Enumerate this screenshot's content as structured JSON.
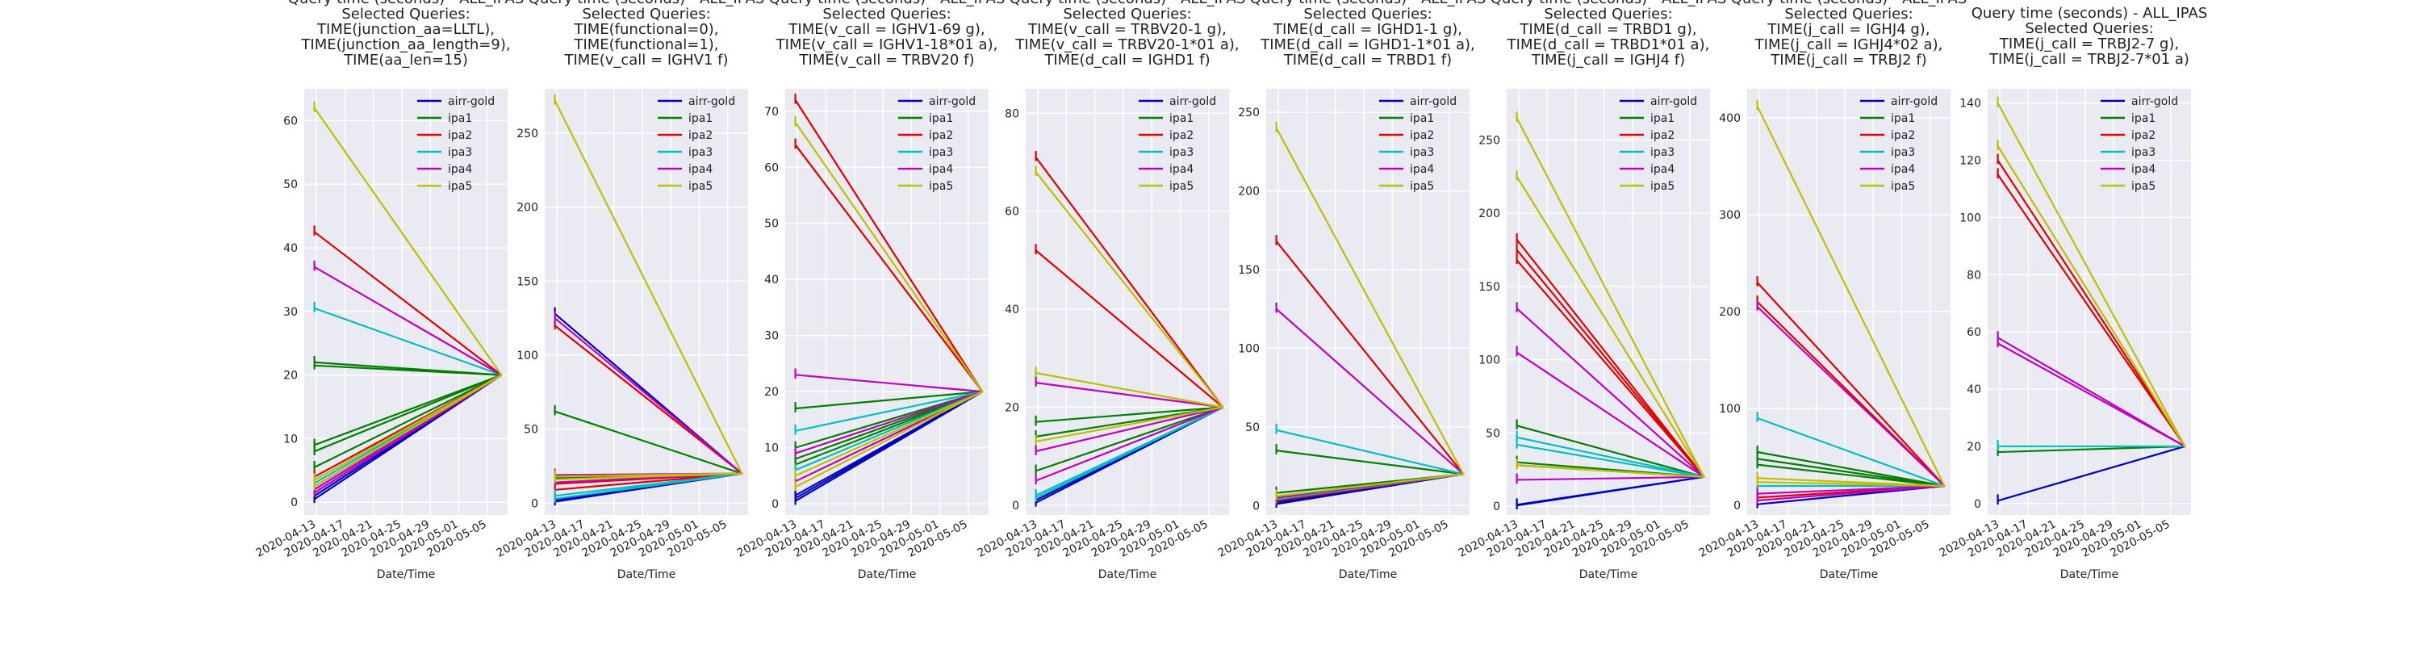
{
  "chart_data": [
    {
      "type": "line",
      "title_lines": [
        "Query time (seconds) - ALL_IPAS",
        "Selected Queries:",
        "TIME(junction_aa=LLTL),",
        "TIME(junction_aa_length=9),",
        "TIME(aa_len=15)"
      ],
      "xlabel": "Date/Time",
      "x_ticks": [
        "2020-04-13",
        "2020-04-17",
        "2020-04-21",
        "2020-04-25",
        "2020-04-29",
        "2020-05-01",
        "2020-05-05"
      ],
      "ylim": [
        -2,
        65
      ],
      "y_ticks": [
        0,
        10,
        20,
        30,
        40,
        50,
        60
      ],
      "grid": true,
      "legend_position": "top-right",
      "series": [
        {
          "name": "airr-gold",
          "color": "#0000bf",
          "segments": [
            [
              0.5,
              20
            ],
            [
              1,
              20
            ],
            [
              1.5,
              20
            ],
            [
              2,
              20
            ]
          ]
        },
        {
          "name": "ipa1",
          "color": "#007f00",
          "segments": [
            [
              21.5,
              20
            ],
            [
              8,
              20
            ],
            [
              5.5,
              20
            ],
            [
              22,
              20
            ],
            [
              9,
              20
            ]
          ]
        },
        {
          "name": "ipa2",
          "color": "#e00000",
          "segments": [
            [
              42.5,
              20
            ],
            [
              2.5,
              20
            ],
            [
              4,
              20
            ]
          ]
        },
        {
          "name": "ipa3",
          "color": "#00bfbf",
          "segments": [
            [
              30.5,
              20
            ],
            [
              3,
              20
            ],
            [
              3.5,
              20
            ]
          ]
        },
        {
          "name": "ipa4",
          "color": "#bf00bf",
          "segments": [
            [
              37,
              20
            ],
            [
              2,
              20
            ],
            [
              1.5,
              20
            ]
          ]
        },
        {
          "name": "ipa5",
          "color": "#bfbf00",
          "segments": [
            [
              62,
              20
            ],
            [
              3.5,
              20
            ],
            [
              2.5,
              20
            ]
          ]
        }
      ]
    },
    {
      "type": "line",
      "title_lines": [
        "Query time (seconds) - ALL_IPAS",
        "Selected Queries:",
        "TIME(functional=0),",
        "TIME(functional=1),",
        "TIME(v_call = IGHV1 f)"
      ],
      "xlabel": "Date/Time",
      "x_ticks": [
        "2020-04-13",
        "2020-04-17",
        "2020-04-21",
        "2020-04-25",
        "2020-04-29",
        "2020-05-01",
        "2020-05-05"
      ],
      "ylim": [
        -8,
        280
      ],
      "y_ticks": [
        0,
        50,
        100,
        150,
        200,
        250
      ],
      "grid": true,
      "legend_position": "top-right",
      "series": [
        {
          "name": "airr-gold",
          "color": "#0000bf",
          "segments": [
            [
              128,
              20
            ],
            [
              1,
              20
            ],
            [
              2,
              20
            ]
          ]
        },
        {
          "name": "ipa1",
          "color": "#007f00",
          "segments": [
            [
              62,
              20
            ],
            [
              17,
              20
            ],
            [
              14,
              20
            ]
          ]
        },
        {
          "name": "ipa2",
          "color": "#e00000",
          "segments": [
            [
              120,
              20
            ],
            [
              9,
              20
            ],
            [
              13,
              20
            ]
          ]
        },
        {
          "name": "ipa3",
          "color": "#00bfbf",
          "segments": [
            [
              3,
              20
            ],
            [
              5,
              20
            ]
          ]
        },
        {
          "name": "ipa4",
          "color": "#bf00bf",
          "segments": [
            [
              125,
              20
            ],
            [
              14,
              20
            ],
            [
              19,
              20
            ]
          ]
        },
        {
          "name": "ipa5",
          "color": "#bfbf00",
          "segments": [
            [
              272,
              20
            ],
            [
              18,
              20
            ],
            [
              16,
              20
            ]
          ]
        }
      ]
    },
    {
      "type": "line",
      "title_lines": [
        "Query time (seconds) - ALL_IPAS",
        "Selected Queries:",
        "TIME(v_call = IGHV1-69 g),",
        "TIME(v_call = IGHV1-18*01 a),",
        "TIME(v_call = TRBV20 f)"
      ],
      "xlabel": "Date/Time",
      "x_ticks": [
        "2020-04-13",
        "2020-04-17",
        "2020-04-21",
        "2020-04-25",
        "2020-04-29",
        "2020-05-01",
        "2020-05-05"
      ],
      "ylim": [
        -2,
        74
      ],
      "y_ticks": [
        0,
        10,
        20,
        30,
        40,
        50,
        60,
        70
      ],
      "grid": true,
      "legend_position": "top-right",
      "series": [
        {
          "name": "airr-gold",
          "color": "#0000bf",
          "segments": [
            [
              0.5,
              20
            ],
            [
              1,
              20
            ],
            [
              1.5,
              20
            ]
          ]
        },
        {
          "name": "ipa1",
          "color": "#007f00",
          "segments": [
            [
              17,
              20
            ],
            [
              8,
              20
            ],
            [
              7,
              20
            ],
            [
              10,
              20
            ]
          ]
        },
        {
          "name": "ipa2",
          "color": "#e00000",
          "segments": [
            [
              72,
              20
            ],
            [
              64,
              20
            ]
          ]
        },
        {
          "name": "ipa3",
          "color": "#00bfbf",
          "segments": [
            [
              13,
              20
            ],
            [
              6,
              20
            ]
          ]
        },
        {
          "name": "ipa4",
          "color": "#bf00bf",
          "segments": [
            [
              23,
              20
            ],
            [
              9,
              20
            ],
            [
              4,
              20
            ]
          ]
        },
        {
          "name": "ipa5",
          "color": "#bfbf00",
          "segments": [
            [
              68,
              20
            ],
            [
              5,
              20
            ],
            [
              3,
              20
            ]
          ]
        }
      ]
    },
    {
      "type": "line",
      "title_lines": [
        "Query time (seconds) - ALL_IPAS",
        "Selected Queries:",
        "TIME(v_call = TRBV20-1 g),",
        "TIME(v_call = TRBV20-1*01  a),",
        "TIME(d_call = IGHD1 f)"
      ],
      "xlabel": "Date/Time",
      "x_ticks": [
        "2020-04-13",
        "2020-04-17",
        "2020-04-21",
        "2020-04-25",
        "2020-04-29",
        "2020-05-01",
        "2020-05-05"
      ],
      "ylim": [
        -2,
        85
      ],
      "y_ticks": [
        0,
        20,
        40,
        60,
        80
      ],
      "grid": true,
      "legend_position": "top-right",
      "series": [
        {
          "name": "airr-gold",
          "color": "#0000bf",
          "segments": [
            [
              0.5,
              20
            ],
            [
              1,
              20
            ]
          ]
        },
        {
          "name": "ipa1",
          "color": "#007f00",
          "segments": [
            [
              17,
              20
            ],
            [
              14,
              20
            ],
            [
              7,
              20
            ]
          ]
        },
        {
          "name": "ipa2",
          "color": "#e00000",
          "segments": [
            [
              71,
              20
            ],
            [
              52,
              20
            ]
          ]
        },
        {
          "name": "ipa3",
          "color": "#00bfbf",
          "segments": [
            [
              1.5,
              20
            ],
            [
              2,
              20
            ]
          ]
        },
        {
          "name": "ipa4",
          "color": "#bf00bf",
          "segments": [
            [
              25,
              20
            ],
            [
              11,
              20
            ],
            [
              5,
              20
            ]
          ]
        },
        {
          "name": "ipa5",
          "color": "#bfbf00",
          "segments": [
            [
              27,
              20
            ],
            [
              13,
              20
            ],
            [
              68,
              20
            ]
          ]
        }
      ]
    },
    {
      "type": "line",
      "title_lines": [
        "Query time (seconds) - ALL_IPAS",
        "Selected Queries:",
        "TIME(d_call = IGHD1-1 g),",
        "TIME(d_call = IGHD1-1*01 a),",
        "TIME(d_call = TRBD1 f)"
      ],
      "xlabel": "Date/Time",
      "x_ticks": [
        "2020-04-13",
        "2020-04-17",
        "2020-04-21",
        "2020-04-25",
        "2020-04-29",
        "2020-05-01",
        "2020-05-05"
      ],
      "ylim": [
        -6,
        265
      ],
      "y_ticks": [
        0,
        50,
        100,
        150,
        200,
        250
      ],
      "grid": true,
      "legend_position": "top-right",
      "series": [
        {
          "name": "airr-gold",
          "color": "#0000bf",
          "segments": [
            [
              1,
              20
            ],
            [
              2,
              20
            ]
          ]
        },
        {
          "name": "ipa1",
          "color": "#007f00",
          "segments": [
            [
              35,
              20
            ],
            [
              8,
              20
            ]
          ]
        },
        {
          "name": "ipa2",
          "color": "#e00000",
          "segments": [
            [
              168,
              20
            ],
            [
              3,
              20
            ]
          ]
        },
        {
          "name": "ipa3",
          "color": "#00bfbf",
          "segments": [
            [
              48,
              20
            ],
            [
              4,
              20
            ]
          ]
        },
        {
          "name": "ipa4",
          "color": "#bf00bf",
          "segments": [
            [
              125,
              20
            ],
            [
              5,
              20
            ]
          ]
        },
        {
          "name": "ipa5",
          "color": "#bfbf00",
          "segments": [
            [
              240,
              20
            ],
            [
              6,
              20
            ]
          ]
        }
      ]
    },
    {
      "type": "line",
      "title_lines": [
        "Query time (seconds) - ALL_IPAS",
        "Selected Queries:",
        "TIME(d_call = TRBD1 g),",
        "TIME(d_call = TRBD1*01 a),",
        "TIME(j_call = IGHJ4 f)"
      ],
      "xlabel": "Date/Time",
      "x_ticks": [
        "2020-04-13",
        "2020-04-17",
        "2020-04-21",
        "2020-04-25",
        "2020-04-29",
        "2020-05-01",
        "2020-05-05"
      ],
      "ylim": [
        -6,
        285
      ],
      "y_ticks": [
        0,
        50,
        100,
        150,
        200,
        250
      ],
      "grid": true,
      "legend_position": "top-right",
      "series": [
        {
          "name": "airr-gold",
          "color": "#0000bf",
          "segments": [
            [
              0.5,
              20
            ],
            [
              1,
              20
            ]
          ]
        },
        {
          "name": "ipa1",
          "color": "#007f00",
          "segments": [
            [
              55,
              20
            ],
            [
              30,
              20
            ],
            [
              28,
              20
            ]
          ]
        },
        {
          "name": "ipa2",
          "color": "#e00000",
          "segments": [
            [
              182,
              20
            ],
            [
              175,
              20
            ],
            [
              168,
              20
            ]
          ]
        },
        {
          "name": "ipa3",
          "color": "#00bfbf",
          "segments": [
            [
              47,
              20
            ],
            [
              42,
              20
            ]
          ]
        },
        {
          "name": "ipa4",
          "color": "#bf00bf",
          "segments": [
            [
              135,
              20
            ],
            [
              105,
              20
            ],
            [
              18,
              20
            ]
          ]
        },
        {
          "name": "ipa5",
          "color": "#bfbf00",
          "segments": [
            [
              265,
              20
            ],
            [
              225,
              20
            ],
            [
              28,
              20
            ]
          ]
        }
      ]
    },
    {
      "type": "line",
      "title_lines": [
        "Query time (seconds) - ALL_IPAS",
        "Selected Queries:",
        "TIME(j_call = IGHJ4 g),",
        "TIME(j_call = IGHJ4*02 a),",
        "TIME(j_call = TRBJ2 f)"
      ],
      "xlabel": "Date/Time",
      "x_ticks": [
        "2020-04-13",
        "2020-04-17",
        "2020-04-21",
        "2020-04-25",
        "2020-04-29",
        "2020-05-01",
        "2020-05-05"
      ],
      "ylim": [
        -10,
        430
      ],
      "y_ticks": [
        0,
        100,
        200,
        300,
        400
      ],
      "grid": true,
      "legend_position": "top-right",
      "series": [
        {
          "name": "airr-gold",
          "color": "#0000bf",
          "segments": [
            [
              1,
              20
            ]
          ]
        },
        {
          "name": "ipa1",
          "color": "#007f00",
          "segments": [
            [
              55,
              20
            ],
            [
              48,
              20
            ],
            [
              42,
              20
            ]
          ]
        },
        {
          "name": "ipa2",
          "color": "#e00000",
          "segments": [
            [
              230,
              20
            ],
            [
              210,
              20
            ],
            [
              8,
              20
            ]
          ]
        },
        {
          "name": "ipa3",
          "color": "#00bfbf",
          "segments": [
            [
              90,
              20
            ],
            [
              20,
              20
            ]
          ]
        },
        {
          "name": "ipa4",
          "color": "#bf00bf",
          "segments": [
            [
              205,
              20
            ],
            [
              12,
              20
            ],
            [
              5,
              20
            ]
          ]
        },
        {
          "name": "ipa5",
          "color": "#bfbf00",
          "segments": [
            [
              412,
              20
            ],
            [
              28,
              20
            ],
            [
              24,
              20
            ]
          ]
        }
      ]
    },
    {
      "type": "line",
      "title_lines": [
        "Query time (seconds) - ALL_IPAS",
        "Selected Queries:",
        "TIME(j_call = TRBJ2-7 g),",
        "TIME(j_call = TRBJ2-7*01 a)"
      ],
      "xlabel": "Date/Time",
      "x_ticks": [
        "2020-04-13",
        "2020-04-17",
        "2020-04-21",
        "2020-04-25",
        "2020-04-29",
        "2020-05-01",
        "2020-05-05"
      ],
      "ylim": [
        -4,
        145
      ],
      "y_ticks": [
        0,
        20,
        40,
        60,
        80,
        100,
        120,
        140
      ],
      "grid": true,
      "legend_position": "top-right",
      "series": [
        {
          "name": "airr-gold",
          "color": "#0000bf",
          "segments": [
            [
              1,
              20
            ]
          ]
        },
        {
          "name": "ipa1",
          "color": "#007f00",
          "segments": [
            [
              18,
              20
            ]
          ]
        },
        {
          "name": "ipa2",
          "color": "#e00000",
          "segments": [
            [
              120,
              20
            ],
            [
              115,
              20
            ]
          ]
        },
        {
          "name": "ipa3",
          "color": "#00bfbf",
          "segments": [
            [
              20,
              20
            ]
          ]
        },
        {
          "name": "ipa4",
          "color": "#bf00bf",
          "segments": [
            [
              58,
              20
            ],
            [
              56,
              20
            ]
          ]
        },
        {
          "name": "ipa5",
          "color": "#bfbf00",
          "segments": [
            [
              140,
              20
            ],
            [
              125,
              20
            ]
          ]
        }
      ]
    }
  ]
}
